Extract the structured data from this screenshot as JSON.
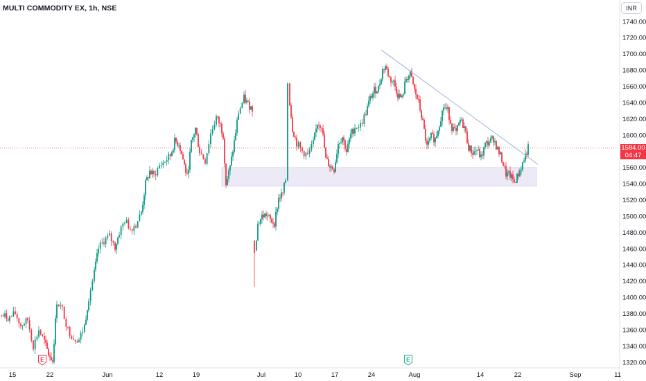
{
  "header": {
    "symbol_title": "MULTI COMMODITY EX, 1h, NSE",
    "currency": "INR"
  },
  "price_tag": {
    "price": "1584.00",
    "countdown": "04:47"
  },
  "colors": {
    "up": "#089981",
    "down": "#f23645",
    "trendline": "#a8b7e0",
    "zone_fill": "#ede9f6",
    "current_line": "#f23645",
    "earnings_badge_red": "#f23645",
    "earnings_badge_green": "#22ab94"
  },
  "icons": {
    "earnings": "earnings-badge-icon"
  },
  "chart_data": {
    "type": "candlestick",
    "title": "MULTI COMMODITY EX, 1h, NSE",
    "ylim": [
      1310,
      1750
    ],
    "y_axis_side": "right",
    "y_ticks": [
      "1740.00",
      "1720.00",
      "1700.00",
      "1680.00",
      "1660.00",
      "1640.00",
      "1620.00",
      "1600.00",
      "1580.00",
      "1560.00",
      "1540.00",
      "1520.00",
      "1500.00",
      "1480.00",
      "1460.00",
      "1440.00",
      "1420.00",
      "1400.00",
      "1380.00",
      "1360.00",
      "1340.00",
      "1320.00"
    ],
    "x_ticks": [
      "15",
      "22",
      "Jun",
      "12",
      "19",
      "Jul",
      "10",
      "17",
      "24",
      "Aug",
      "14",
      "22",
      "Sep",
      "11"
    ],
    "last_price": 1584.0,
    "grid": false,
    "close_path": [
      {
        "x": 0,
        "y": 1378
      },
      {
        "x": 14,
        "y": 1375
      },
      {
        "x": 22,
        "y": 1380
      },
      {
        "x": 30,
        "y": 1365
      },
      {
        "x": 40,
        "y": 1372
      },
      {
        "x": 48,
        "y": 1340
      },
      {
        "x": 56,
        "y": 1360
      },
      {
        "x": 64,
        "y": 1345
      },
      {
        "x": 70,
        "y": 1330
      },
      {
        "x": 76,
        "y": 1322
      },
      {
        "x": 82,
        "y": 1395
      },
      {
        "x": 90,
        "y": 1385
      },
      {
        "x": 98,
        "y": 1360
      },
      {
        "x": 106,
        "y": 1350
      },
      {
        "x": 114,
        "y": 1348
      },
      {
        "x": 122,
        "y": 1365
      },
      {
        "x": 128,
        "y": 1400
      },
      {
        "x": 136,
        "y": 1430
      },
      {
        "x": 142,
        "y": 1460
      },
      {
        "x": 150,
        "y": 1470
      },
      {
        "x": 158,
        "y": 1475
      },
      {
        "x": 166,
        "y": 1462
      },
      {
        "x": 172,
        "y": 1480
      },
      {
        "x": 180,
        "y": 1495
      },
      {
        "x": 188,
        "y": 1485
      },
      {
        "x": 196,
        "y": 1490
      },
      {
        "x": 204,
        "y": 1505
      },
      {
        "x": 210,
        "y": 1540
      },
      {
        "x": 216,
        "y": 1555
      },
      {
        "x": 222,
        "y": 1550
      },
      {
        "x": 230,
        "y": 1562
      },
      {
        "x": 238,
        "y": 1568
      },
      {
        "x": 246,
        "y": 1575
      },
      {
        "x": 252,
        "y": 1592
      },
      {
        "x": 258,
        "y": 1590
      },
      {
        "x": 264,
        "y": 1570
      },
      {
        "x": 270,
        "y": 1548
      },
      {
        "x": 276,
        "y": 1590
      },
      {
        "x": 282,
        "y": 1608
      },
      {
        "x": 288,
        "y": 1580
      },
      {
        "x": 296,
        "y": 1568
      },
      {
        "x": 304,
        "y": 1602
      },
      {
        "x": 312,
        "y": 1622
      },
      {
        "x": 318,
        "y": 1612
      },
      {
        "x": 322,
        "y": 1600
      },
      {
        "x": 326,
        "y": 1540
      },
      {
        "x": 332,
        "y": 1560
      },
      {
        "x": 338,
        "y": 1592
      },
      {
        "x": 344,
        "y": 1628
      },
      {
        "x": 352,
        "y": 1645
      },
      {
        "x": 358,
        "y": 1638
      },
      {
        "x": 364,
        "y": 1632
      }
    ],
    "close_path_2": [
      {
        "x": 368,
        "y": 1460
      },
      {
        "x": 372,
        "y": 1490
      },
      {
        "x": 378,
        "y": 1500
      },
      {
        "x": 384,
        "y": 1502
      },
      {
        "x": 390,
        "y": 1495
      },
      {
        "x": 396,
        "y": 1492
      },
      {
        "x": 402,
        "y": 1522
      },
      {
        "x": 408,
        "y": 1528
      },
      {
        "x": 412,
        "y": 1545
      },
      {
        "x": 415,
        "y": 1665
      },
      {
        "x": 418,
        "y": 1640
      },
      {
        "x": 422,
        "y": 1608
      },
      {
        "x": 428,
        "y": 1590
      },
      {
        "x": 436,
        "y": 1580
      },
      {
        "x": 444,
        "y": 1575
      },
      {
        "x": 452,
        "y": 1590
      },
      {
        "x": 458,
        "y": 1615
      },
      {
        "x": 464,
        "y": 1612
      },
      {
        "x": 470,
        "y": 1570
      },
      {
        "x": 476,
        "y": 1562
      },
      {
        "x": 482,
        "y": 1558
      },
      {
        "x": 488,
        "y": 1590
      },
      {
        "x": 494,
        "y": 1598
      },
      {
        "x": 500,
        "y": 1580
      },
      {
        "x": 506,
        "y": 1600
      },
      {
        "x": 512,
        "y": 1610
      },
      {
        "x": 520,
        "y": 1612
      },
      {
        "x": 528,
        "y": 1628
      },
      {
        "x": 534,
        "y": 1645
      },
      {
        "x": 540,
        "y": 1655
      },
      {
        "x": 546,
        "y": 1658
      },
      {
        "x": 552,
        "y": 1680
      },
      {
        "x": 556,
        "y": 1685
      },
      {
        "x": 562,
        "y": 1670
      },
      {
        "x": 568,
        "y": 1665
      },
      {
        "x": 574,
        "y": 1650
      },
      {
        "x": 580,
        "y": 1645
      },
      {
        "x": 586,
        "y": 1670
      },
      {
        "x": 592,
        "y": 1675
      },
      {
        "x": 598,
        "y": 1655
      },
      {
        "x": 604,
        "y": 1640
      },
      {
        "x": 610,
        "y": 1615
      },
      {
        "x": 616,
        "y": 1585
      },
      {
        "x": 622,
        "y": 1598
      },
      {
        "x": 628,
        "y": 1595
      },
      {
        "x": 634,
        "y": 1615
      },
      {
        "x": 640,
        "y": 1635
      },
      {
        "x": 646,
        "y": 1630
      },
      {
        "x": 652,
        "y": 1610
      },
      {
        "x": 658,
        "y": 1602
      },
      {
        "x": 664,
        "y": 1618
      },
      {
        "x": 670,
        "y": 1610
      },
      {
        "x": 676,
        "y": 1585
      },
      {
        "x": 682,
        "y": 1578
      },
      {
        "x": 688,
        "y": 1582
      },
      {
        "x": 694,
        "y": 1572
      },
      {
        "x": 700,
        "y": 1588
      },
      {
        "x": 706,
        "y": 1592
      },
      {
        "x": 712,
        "y": 1596
      },
      {
        "x": 718,
        "y": 1582
      },
      {
        "x": 724,
        "y": 1570
      },
      {
        "x": 730,
        "y": 1552
      },
      {
        "x": 736,
        "y": 1550
      },
      {
        "x": 742,
        "y": 1542
      },
      {
        "x": 748,
        "y": 1552
      },
      {
        "x": 754,
        "y": 1565
      },
      {
        "x": 758,
        "y": 1575
      },
      {
        "x": 762,
        "y": 1584
      }
    ],
    "trendline": {
      "from": {
        "x": 550,
        "y": 1705
      },
      "to": {
        "x": 776,
        "y": 1564
      }
    },
    "support_zone": {
      "x_from": 320,
      "x_to": 774,
      "y_from": 1537,
      "y_to": 1560
    },
    "events": [
      {
        "label": "E",
        "type": "earnings",
        "color": "red",
        "x": 61
      },
      {
        "label": "E",
        "type": "earnings",
        "color": "green",
        "x": 589
      }
    ]
  }
}
